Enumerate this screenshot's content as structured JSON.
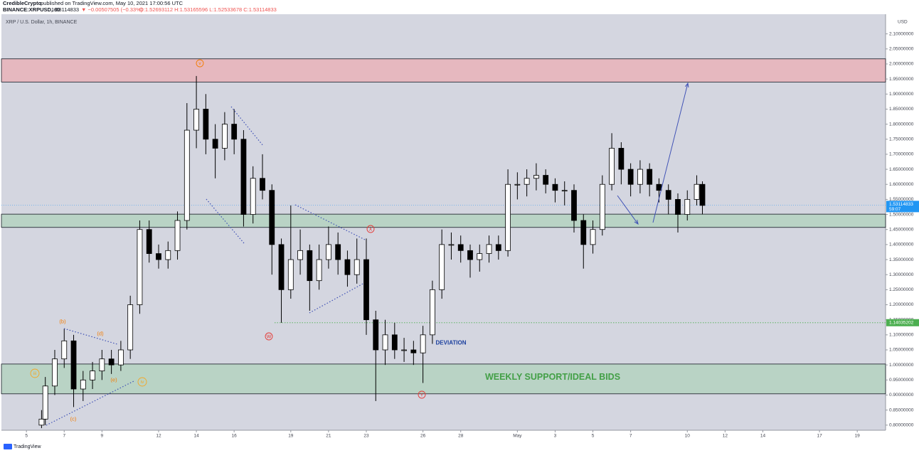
{
  "chart_data": {
    "type": "candlestick",
    "header": {
      "author": "CredibleCrypto",
      "published": "published on TradingView.com, May 10, 2021 17:00:56 UTC",
      "symbol": "BINANCE:XRPUSD, 60",
      "last": "1.53114833",
      "change": "▼ −0.00507505 (−0.33%)",
      "ohlc": "O:1.52693112 H:1.53165596 L:1.52533678 C:1.53114833"
    },
    "title": "XRP / U.S. Dollar, 1h, BINANCE",
    "currency": "USD",
    "footer": "TradingView",
    "up_color": "#ffffff",
    "down_color": "#000000",
    "x": [
      5.8,
      6,
      6.5,
      7,
      7.5,
      8,
      8.5,
      9,
      9.5,
      10,
      10.5,
      11,
      11.5,
      12,
      12.5,
      13,
      13.5,
      14,
      14.5,
      15,
      15.5,
      16,
      16.5,
      17,
      17.5,
      18,
      18.5,
      19,
      19.5,
      20,
      20.5,
      21,
      21.5,
      22,
      22.5,
      23,
      23.5,
      24,
      24.5,
      25,
      25.5,
      26,
      26.5,
      27,
      27.5,
      28,
      28.5,
      29,
      29.5,
      30,
      30.5,
      31,
      31.5,
      32,
      32.5,
      33,
      33.5,
      34,
      34.5,
      35,
      35.5,
      36,
      36.5,
      37,
      37.5,
      38,
      38.5,
      39,
      39.5,
      40,
      40.5,
      40.8
    ],
    "open": [
      0.8,
      0.82,
      0.93,
      1.02,
      1.08,
      0.92,
      0.95,
      0.98,
      1.02,
      1.0,
      1.05,
      1.2,
      1.45,
      1.37,
      1.35,
      1.38,
      1.48,
      1.78,
      1.85,
      1.75,
      1.72,
      1.8,
      1.75,
      1.5,
      1.62,
      1.58,
      1.4,
      1.25,
      1.35,
      1.38,
      1.28,
      1.35,
      1.4,
      1.35,
      1.3,
      1.35,
      1.15,
      1.05,
      1.1,
      1.05,
      1.05,
      1.04,
      1.1,
      1.25,
      1.4,
      1.4,
      1.38,
      1.35,
      1.37,
      1.4,
      1.38,
      1.6,
      1.6,
      1.62,
      1.63,
      1.6,
      1.58,
      1.58,
      1.48,
      1.4,
      1.45,
      1.6,
      1.72,
      1.65,
      1.6,
      1.65,
      1.6,
      1.58,
      1.55,
      1.5,
      1.55,
      1.6
    ],
    "high": [
      0.85,
      0.96,
      1.05,
      1.12,
      1.1,
      0.98,
      1.01,
      1.05,
      1.05,
      1.08,
      1.23,
      1.48,
      1.48,
      1.4,
      1.41,
      1.51,
      1.87,
      1.96,
      1.9,
      1.8,
      1.84,
      1.85,
      1.78,
      1.66,
      1.7,
      1.6,
      1.42,
      1.53,
      1.45,
      1.4,
      1.4,
      1.46,
      1.44,
      1.38,
      1.42,
      1.42,
      1.18,
      1.15,
      1.14,
      1.09,
      1.08,
      1.13,
      1.28,
      1.45,
      1.44,
      1.43,
      1.4,
      1.4,
      1.43,
      1.43,
      1.65,
      1.64,
      1.65,
      1.67,
      1.65,
      1.62,
      1.61,
      1.6,
      1.5,
      1.48,
      1.63,
      1.77,
      1.74,
      1.67,
      1.68,
      1.67,
      1.62,
      1.6,
      1.57,
      1.58,
      1.63,
      1.61
    ],
    "low": [
      0.79,
      0.8,
      0.9,
      0.99,
      0.86,
      0.88,
      0.92,
      0.95,
      0.97,
      0.98,
      1.02,
      1.17,
      1.34,
      1.32,
      1.32,
      1.35,
      1.45,
      1.72,
      1.7,
      1.62,
      1.68,
      1.7,
      1.46,
      1.47,
      1.55,
      1.3,
      1.14,
      1.22,
      1.3,
      1.18,
      1.25,
      1.32,
      1.3,
      1.26,
      1.27,
      1.1,
      0.88,
      1.0,
      1.02,
      1.01,
      1.0,
      0.94,
      1.07,
      1.22,
      1.35,
      1.34,
      1.29,
      1.31,
      1.34,
      1.35,
      1.36,
      1.55,
      1.56,
      1.58,
      1.57,
      1.54,
      1.53,
      1.44,
      1.32,
      1.37,
      1.43,
      1.58,
      1.6,
      1.56,
      1.57,
      1.56,
      1.54,
      1.5,
      1.44,
      1.48,
      1.53,
      1.5
    ],
    "close": [
      0.82,
      0.93,
      1.02,
      1.08,
      0.92,
      0.95,
      0.98,
      1.02,
      1.0,
      1.05,
      1.2,
      1.45,
      1.37,
      1.35,
      1.38,
      1.48,
      1.78,
      1.85,
      1.75,
      1.72,
      1.8,
      1.75,
      1.5,
      1.62,
      1.58,
      1.4,
      1.25,
      1.35,
      1.38,
      1.28,
      1.35,
      1.4,
      1.35,
      1.3,
      1.35,
      1.15,
      1.05,
      1.1,
      1.05,
      1.05,
      1.04,
      1.1,
      1.25,
      1.4,
      1.4,
      1.38,
      1.35,
      1.37,
      1.4,
      1.38,
      1.6,
      1.6,
      1.62,
      1.63,
      1.6,
      1.58,
      1.58,
      1.48,
      1.4,
      1.45,
      1.6,
      1.72,
      1.65,
      1.6,
      1.65,
      1.6,
      1.58,
      1.55,
      1.5,
      1.55,
      1.6,
      1.53
    ],
    "xlim": [
      3.6,
      50.5
    ],
    "xticks": [
      5,
      7,
      9,
      12,
      14,
      16,
      19,
      21,
      23,
      26,
      28,
      {
        "value": 31,
        "label": "May"
      },
      {
        "value": 33,
        "label": "3"
      },
      {
        "value": 35,
        "label": "5"
      },
      {
        "value": 37,
        "label": "7"
      },
      {
        "value": 40,
        "label": "10"
      },
      {
        "value": 42,
        "label": "12"
      },
      {
        "value": 44,
        "label": "14"
      },
      {
        "value": 47,
        "label": "17"
      },
      {
        "value": 49,
        "label": "19"
      }
    ],
    "ylim": [
      0.783,
      2.17
    ],
    "yticks": [
      {
        "value": 0.8,
        "label": "0.80000000"
      },
      {
        "value": 0.85,
        "label": "0.85000000"
      },
      {
        "value": 0.9,
        "label": "0.90000000"
      },
      {
        "value": 0.95,
        "label": "0.95000000"
      },
      {
        "value": 1.0,
        "label": "1.00000000"
      },
      {
        "value": 1.05,
        "label": "1.05000000"
      },
      {
        "value": 1.1,
        "label": "1.10000000"
      },
      {
        "value": 1.15,
        "label": "1.15000000"
      },
      {
        "value": 1.2,
        "label": "1.20000000"
      },
      {
        "value": 1.25,
        "label": "1.25000000"
      },
      {
        "value": 1.3,
        "label": "1.30000000"
      },
      {
        "value": 1.35,
        "label": "1.35000000"
      },
      {
        "value": 1.4,
        "label": "1.40000000"
      },
      {
        "value": 1.45,
        "label": "1.45000000"
      },
      {
        "value": 1.5,
        "label": "1.50000000"
      },
      {
        "value": 1.55,
        "label": "1.55000000"
      },
      {
        "value": 1.6,
        "label": "1.60000000"
      },
      {
        "value": 1.65,
        "label": "1.65000000"
      },
      {
        "value": 1.7,
        "label": "1.70000000"
      },
      {
        "value": 1.75,
        "label": "1.75000000"
      },
      {
        "value": 1.8,
        "label": "1.80000000"
      },
      {
        "value": 1.85,
        "label": "1.85000000"
      },
      {
        "value": 1.9,
        "label": "1.90000000"
      },
      {
        "value": 1.95,
        "label": "1.95000000"
      },
      {
        "value": 2.0,
        "label": "2.00000000"
      },
      {
        "value": 2.05,
        "label": "2.05000000"
      },
      {
        "value": 2.1,
        "label": "2.10000000"
      }
    ],
    "zones": [
      {
        "range": [
          1.94,
          2.017
        ],
        "color": "#e6b8bf"
      },
      {
        "range": [
          1.457,
          1.501
        ],
        "color": "#b9d3c5"
      },
      {
        "range": [
          0.904,
          1.003
        ],
        "color": "#b9d3c5"
      }
    ],
    "last_price": 1.53114833,
    "countdown": "59:07",
    "level": 1.14035202,
    "annotations": [
      "(b)",
      "(d)",
      "(e)",
      "(c)",
      "iii",
      "iv",
      "v",
      "W",
      "X",
      "Y",
      "DEVIATION",
      "WEEKLY SUPPORT/IDEAL BIDS"
    ]
  }
}
